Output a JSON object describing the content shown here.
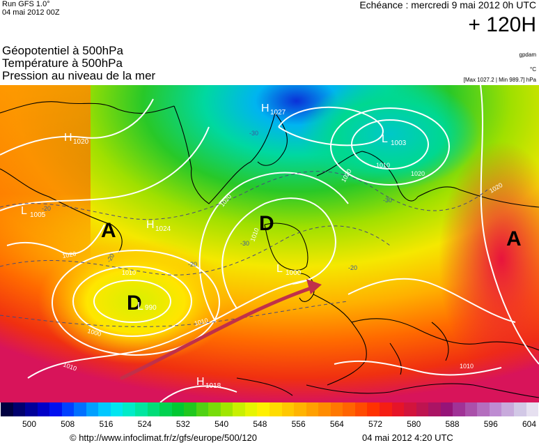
{
  "header": {
    "run": "Run GFS 1.0°",
    "run_date": "04 mai 2012 00Z",
    "echeance": "Echéance : mercredi 9 mai 2012 0h UTC",
    "lead": "+ 120H"
  },
  "fields": {
    "geopotential": "Géopotentiel à 500hPa",
    "temperature": "Température à 500hPa",
    "pressure": "Pression au niveau de la mer"
  },
  "units": {
    "geopotential": "gpdam",
    "temperature": "°C",
    "pressure": "[Max 1027.2 | Min 989.7] hPa"
  },
  "map": {
    "big_labels": [
      {
        "text": "A"
      },
      {
        "text": "D"
      },
      {
        "text": "D"
      },
      {
        "text": "A"
      }
    ],
    "pressure_centers": [
      {
        "letter": "H",
        "value": "1020"
      },
      {
        "letter": "H",
        "value": "1027"
      },
      {
        "letter": "L",
        "value": "1003"
      },
      {
        "letter": "L",
        "value": "1005"
      },
      {
        "letter": "H",
        "value": "1024"
      },
      {
        "letter": "L",
        "value": "1000"
      },
      {
        "letter": "L",
        "value": "990"
      },
      {
        "letter": "H",
        "value": "1018"
      }
    ],
    "isobar_labels": [
      "1010",
      "1010",
      "1020",
      "1020",
      "1010",
      "1000",
      "1020",
      "1010",
      "1020",
      "1020",
      "1010",
      "1010"
    ],
    "temperature_labels": [
      "-30",
      "-30",
      "-20",
      "-20",
      "-30",
      "-20",
      "-20"
    ],
    "arrow_color": "#c0304a"
  },
  "legend": {
    "ticks": [
      "500",
      "508",
      "516",
      "524",
      "532",
      "540",
      "548",
      "556",
      "564",
      "572",
      "580",
      "588",
      "596",
      "604"
    ],
    "colors": [
      "#000040",
      "#00006e",
      "#00009a",
      "#0000c8",
      "#0010f0",
      "#0040ff",
      "#0070ff",
      "#00a0ff",
      "#00c8ff",
      "#00e6f0",
      "#00ebc8",
      "#00e6a0",
      "#00dc78",
      "#00d250",
      "#00c832",
      "#20c81e",
      "#50d214",
      "#78dc0a",
      "#a0e600",
      "#c8f000",
      "#e6f500",
      "#fff000",
      "#ffdc00",
      "#ffc800",
      "#ffb400",
      "#ffa000",
      "#ff8c00",
      "#ff7800",
      "#ff6400",
      "#ff4b00",
      "#ff3200",
      "#f51e14",
      "#e61428",
      "#d2143c",
      "#be1450",
      "#aa1464",
      "#961478",
      "#a03296",
      "#aa50aa",
      "#b46ebe",
      "#be8cd2",
      "#c8aadc",
      "#d2c8e6",
      "#e6e0f0"
    ]
  },
  "footer": {
    "url": "© http://www.infoclimat.fr/z/gfs/europe/500/120",
    "date": "04 mai 2012  4:20 UTC"
  }
}
